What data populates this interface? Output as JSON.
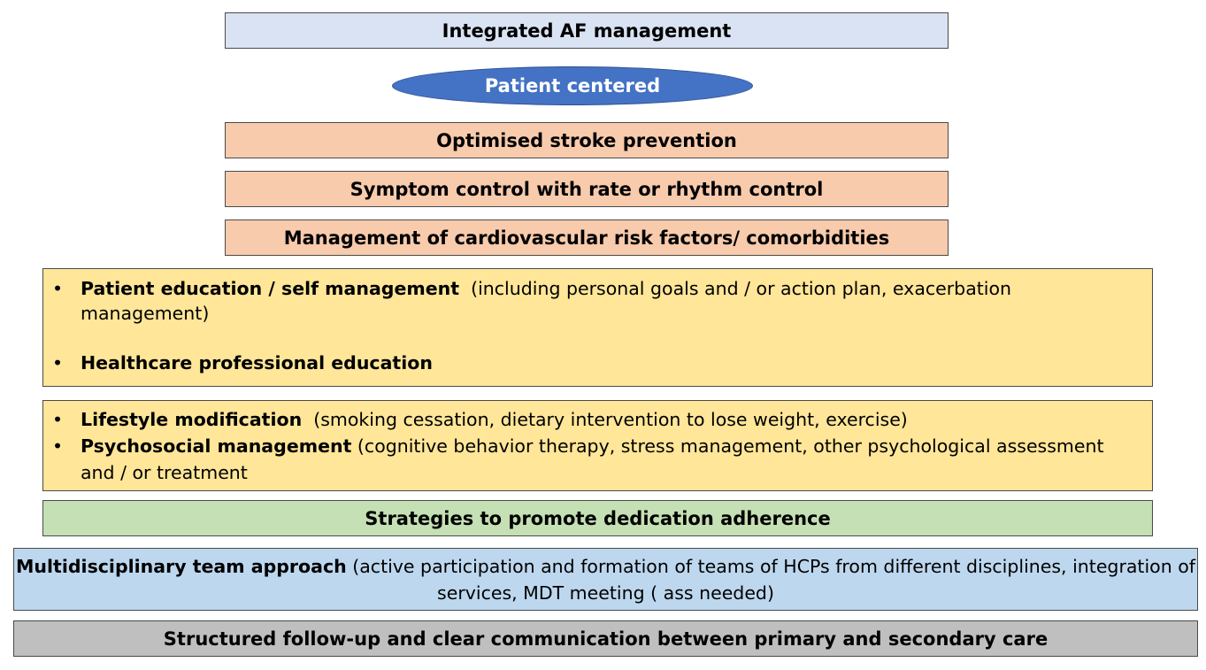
{
  "title": "Integrated AF management",
  "center_label": "Patient centered",
  "pillars": [
    "Optimised stroke prevention",
    "Symptom control with rate or rhythm control",
    "Management of cardiovascular risk factors/ comorbidities"
  ],
  "education": {
    "bullet": "•",
    "item1_bold": "Patient education / self management",
    "item1_detail": "(including personal goals and / or action plan, exacerbation management)",
    "item2_bold": "Healthcare professional education"
  },
  "lifestyle": {
    "bullet": "•",
    "item1_bold": "Lifestyle modification",
    "item1_detail": "(smoking cessation, dietary intervention to lose weight, exercise)",
    "item2_bold": "Psychosocial management",
    "item2_detail": "(cognitive behavior therapy, stress management, other psychological assessment and / or treatment"
  },
  "adherence": "Strategies to promote dedication adherence",
  "mdt": {
    "bold": "Multidisciplinary team approach",
    "detail": "(active participation and formation of teams of HCPs from different disciplines, integration of services, MDT meeting ( ass needed)"
  },
  "followup": "Structured follow-up and clear communication between primary and secondary care",
  "colors": {
    "title_fill": "#dae3f3",
    "ellipse_fill": "#4472c4",
    "pillar_fill": "#f8cbad",
    "education_fill": "#ffe699",
    "adherence_fill": "#c5e0b4",
    "mdt_fill": "#bdd7ee",
    "followup_fill": "#bfbfbf"
  }
}
